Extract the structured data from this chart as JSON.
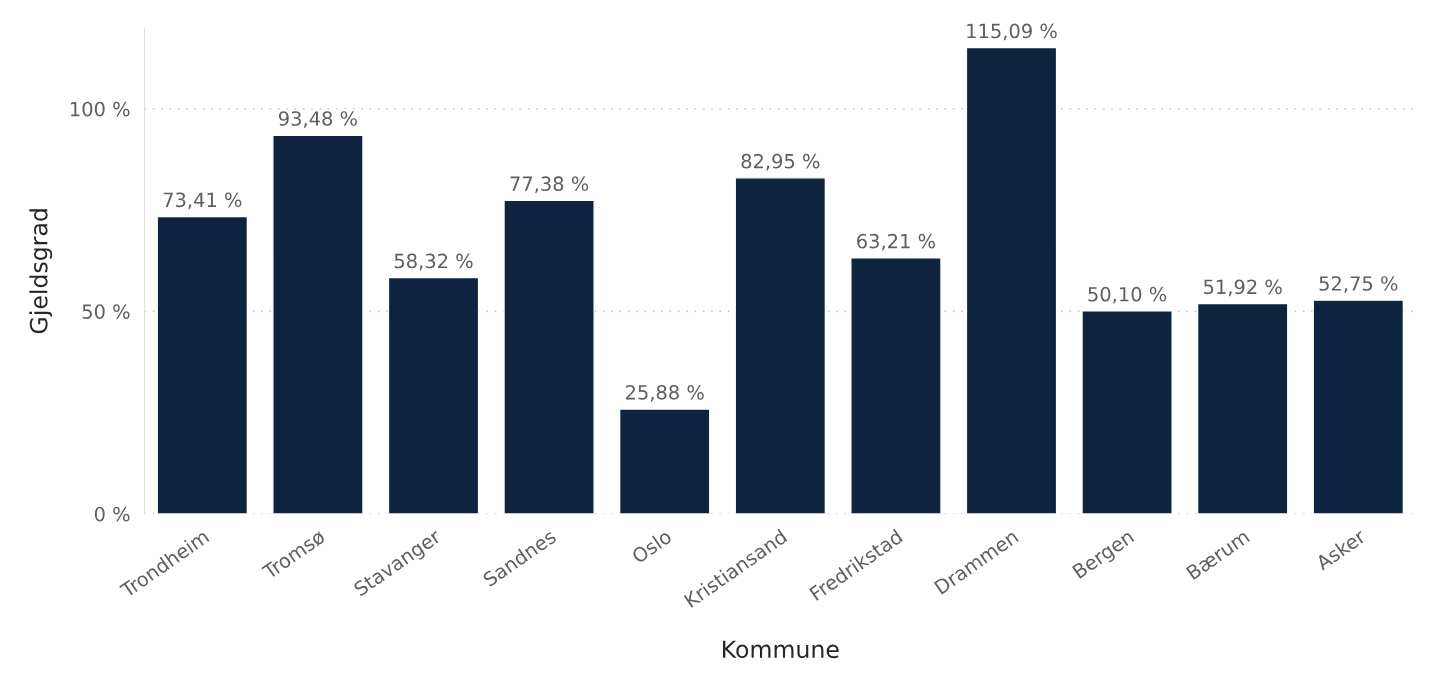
{
  "chart_data": {
    "type": "bar",
    "xlabel": "Kommune",
    "ylabel": "Gjeldsgrad",
    "categories": [
      "Trondheim",
      "Tromsø",
      "Stavanger",
      "Sandnes",
      "Oslo",
      "Kristiansand",
      "Fredrikstad",
      "Drammen",
      "Bergen",
      "Bærum",
      "Asker"
    ],
    "values": [
      73.41,
      93.48,
      58.32,
      77.38,
      25.88,
      82.95,
      63.21,
      115.09,
      50.1,
      51.92,
      52.75
    ],
    "value_labels": [
      "73,41 %",
      "93,48 %",
      "58,32 %",
      "77,38 %",
      "25,88 %",
      "82,95 %",
      "63,21 %",
      "115,09 %",
      "50,10 %",
      "51,92 %",
      "52,75 %"
    ],
    "color": "#0e2340",
    "ylim": [
      0,
      120
    ],
    "yticks": [
      {
        "value": 0,
        "label": "0 %"
      },
      {
        "value": 50,
        "label": "50 %"
      },
      {
        "value": 100,
        "label": "100 %"
      }
    ],
    "grid": "y"
  }
}
